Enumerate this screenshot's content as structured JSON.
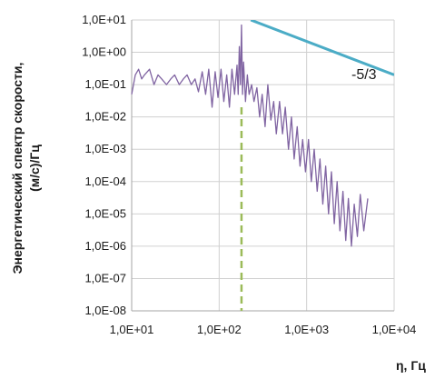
{
  "chart_data": {
    "type": "line",
    "title": "",
    "xlabel": "η, Гц",
    "ylabel_line1": "Энергетический спектр скорости,",
    "ylabel_line2": "(м/с)/Гц",
    "x_scale": "log",
    "y_scale": "log",
    "xlim": [
      10,
      10000
    ],
    "ylim": [
      1e-08,
      10
    ],
    "grid": "both",
    "x_ticks": [
      {
        "value": 10,
        "label": "1,0E+01"
      },
      {
        "value": 100,
        "label": "1,0E+02"
      },
      {
        "value": 1000,
        "label": "1,0E+03"
      },
      {
        "value": 10000,
        "label": "1,0E+04"
      }
    ],
    "y_ticks": [
      {
        "value": 10,
        "label": "1,0E+01"
      },
      {
        "value": 1,
        "label": "1,0E+00"
      },
      {
        "value": 0.1,
        "label": "1,0E-01"
      },
      {
        "value": 0.01,
        "label": "1,0E-02"
      },
      {
        "value": 0.001,
        "label": "1,0E-03"
      },
      {
        "value": 0.0001,
        "label": "1,0E-04"
      },
      {
        "value": 1e-05,
        "label": "1,0E-05"
      },
      {
        "value": 1e-06,
        "label": "1,0E-06"
      },
      {
        "value": 1e-07,
        "label": "1,0E-07"
      },
      {
        "value": 1e-08,
        "label": "1,0E-08"
      }
    ],
    "series": [
      {
        "color": "#8064a2",
        "style": "solid",
        "x": [
          10,
          11,
          12,
          13,
          14,
          16,
          18,
          20,
          22,
          25,
          28,
          31,
          35,
          39,
          43,
          48,
          53,
          58,
          64,
          70,
          76,
          83,
          90,
          97,
          105,
          113,
          122,
          131,
          140,
          150,
          160,
          165,
          170,
          175,
          180,
          185,
          190,
          200,
          210,
          220,
          235,
          250,
          270,
          290,
          310,
          335,
          360,
          390,
          420,
          450,
          490,
          530,
          570,
          620,
          670,
          720,
          780,
          840,
          900,
          970,
          1050,
          1130,
          1220,
          1320,
          1420,
          1530,
          1650,
          1780,
          1920,
          2070,
          2230,
          2400,
          2600,
          2800,
          3000,
          3250,
          3500,
          3800,
          4100,
          4500,
          5000
        ],
        "y": [
          0.05,
          0.2,
          0.3,
          0.15,
          0.2,
          0.3,
          0.1,
          0.2,
          0.15,
          0.1,
          0.15,
          0.2,
          0.1,
          0.15,
          0.2,
          0.1,
          0.15,
          0.06,
          0.25,
          0.05,
          0.3,
          0.02,
          0.25,
          0.04,
          0.3,
          0.03,
          0.2,
          0.02,
          0.3,
          0.05,
          0.4,
          0.05,
          1.5,
          0.1,
          7,
          0.05,
          0.5,
          0.03,
          0.2,
          0.05,
          0.1,
          0.03,
          0.08,
          0.01,
          0.05,
          0.005,
          0.1,
          0.008,
          0.03,
          0.003,
          0.03,
          0.003,
          0.02,
          0.001,
          0.01,
          0.0005,
          0.005,
          0.0003,
          0.002,
          0.0002,
          0.002,
          0.0001,
          0.001,
          5e-05,
          0.0005,
          2e-05,
          0.0003,
          1e-05,
          0.0002,
          5e-06,
          0.0001,
          3e-06,
          5e-05,
          1.5e-06,
          3e-05,
          1e-06,
          2e-05,
          2e-06,
          4e-05,
          3e-06,
          3e-05
        ]
      },
      {
        "color": "#4bacc6",
        "style": "solid",
        "x": [
          230,
          10000
        ],
        "y": [
          10,
          0.2
        ]
      },
      {
        "color": "#9bbb59",
        "style": "dashed",
        "x": [
          180,
          180
        ],
        "y": [
          0.02,
          1e-08
        ]
      }
    ],
    "annotations": [
      {
        "text": "-5/3"
      }
    ]
  }
}
